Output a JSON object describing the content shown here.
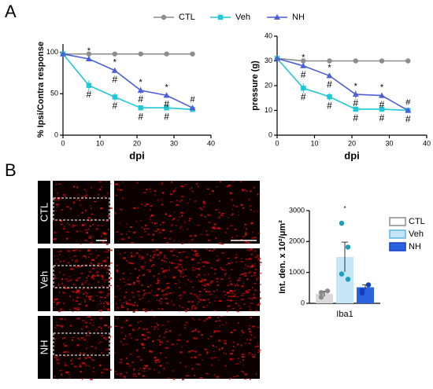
{
  "panels": [
    "A",
    "B"
  ],
  "image_labels": [
    "CTL",
    "Veh",
    "NH"
  ],
  "chart_data": [
    {
      "type": "line",
      "ylabel": "% Ipsi/Contra response",
      "xlabel": "dpi",
      "x": [
        0,
        7,
        14,
        21,
        28,
        35
      ],
      "xlim": [
        0,
        40
      ],
      "xticks": [
        0,
        10,
        20,
        30,
        40
      ],
      "ylim": [
        0,
        110
      ],
      "yticks": [
        0,
        50,
        100
      ],
      "legend": "top",
      "series": [
        {
          "name": "CTL",
          "color": "#8c8c8c",
          "marker": "circle",
          "values": [
            98,
            98,
            98,
            98,
            98,
            98
          ],
          "errors": [
            1,
            1,
            1,
            1,
            1,
            1
          ]
        },
        {
          "name": "Veh",
          "color": "#1ec8d8",
          "marker": "square",
          "values": [
            98,
            60,
            46,
            33,
            33,
            31
          ],
          "errors": [
            2,
            6,
            5,
            3,
            3,
            2
          ],
          "labels_below": [
            null,
            "#",
            "#",
            "#",
            "#",
            null
          ]
        },
        {
          "name": "NH",
          "color": "#4a5fd8",
          "marker": "triangle",
          "values": [
            98,
            92,
            78,
            54,
            48,
            33
          ],
          "errors": [
            2,
            3,
            3,
            4,
            3,
            2
          ],
          "labels_above": [
            null,
            "*",
            "*",
            "*",
            "*",
            "#"
          ],
          "labels_below": [
            null,
            null,
            "#",
            "#",
            "#",
            null
          ]
        }
      ]
    },
    {
      "type": "line",
      "ylabel": "pressure (g)",
      "xlabel": "dpi",
      "x": [
        0,
        7,
        14,
        21,
        28,
        35
      ],
      "xlim": [
        0,
        40
      ],
      "xticks": [
        0,
        10,
        20,
        30,
        40
      ],
      "ylim": [
        0,
        40
      ],
      "yticks": [
        0,
        10,
        20,
        30,
        40
      ],
      "series": [
        {
          "name": "CTL",
          "color": "#8c8c8c",
          "marker": "circle",
          "values": [
            31,
            30,
            30,
            30,
            30,
            30
          ],
          "errors": [
            0.5,
            0.5,
            0.5,
            0.5,
            0.5,
            0.5
          ]
        },
        {
          "name": "Veh",
          "color": "#1ec8d8",
          "marker": "square",
          "values": [
            31,
            19,
            15.5,
            10.5,
            10.5,
            10
          ],
          "errors": [
            1,
            2,
            1.5,
            1,
            1,
            1
          ],
          "labels_below": [
            null,
            "#",
            "#",
            "#",
            "#",
            "#"
          ]
        },
        {
          "name": "NH",
          "color": "#4a5fd8",
          "marker": "triangle",
          "values": [
            31,
            28,
            24,
            16.5,
            16,
            10
          ],
          "errors": [
            1,
            1,
            1,
            1.5,
            1,
            1
          ],
          "labels_above": [
            null,
            "*",
            "*",
            "*",
            "*",
            "#"
          ],
          "labels_below": [
            null,
            "#",
            "#",
            "#",
            "#",
            null
          ]
        }
      ]
    },
    {
      "type": "bar",
      "ylabel": "Int. den. x 10²/μm²",
      "categories": [
        "Iba1"
      ],
      "ylim": [
        0,
        3000
      ],
      "yticks": [
        0,
        1000,
        2000,
        3000
      ],
      "legend": "right",
      "series": [
        {
          "name": "CTL",
          "color": "#d9d9d9",
          "edge": "#8c8c8c",
          "dot": "#8c8c8c",
          "values": [
            310
          ],
          "errors": [
            80
          ],
          "points": [
            200,
            400,
            350
          ]
        },
        {
          "name": "Veh",
          "color": "#c4e6f7",
          "edge": "#5bb5e6",
          "dot": "#1aa0b8",
          "values": [
            1500
          ],
          "errors": [
            480
          ],
          "points": [
            2590,
            1820,
            950,
            780
          ],
          "label_above": "*"
        },
        {
          "name": "NH",
          "color": "#2a62e0",
          "edge": "#1a3fc0",
          "dot": "#1040c0",
          "values": [
            520
          ],
          "errors": [
            80
          ],
          "points": [
            420,
            600,
            330
          ]
        }
      ]
    }
  ]
}
